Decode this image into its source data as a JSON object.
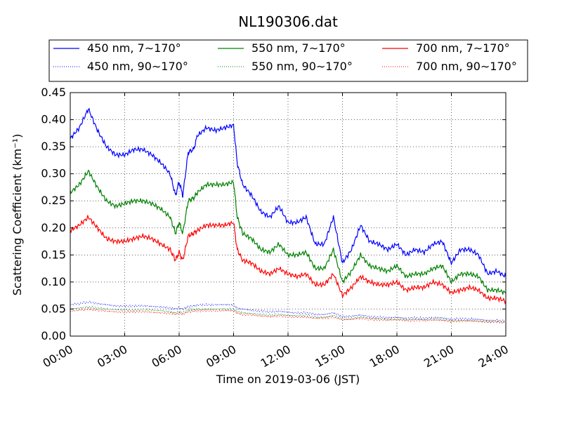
{
  "chart_data": {
    "type": "line",
    "title": "NL190306.dat",
    "xlabel": "Time on 2019-03-06 (JST)",
    "ylabel": "Scattering Coefficient (km⁻¹)",
    "xlim": [
      "00:00",
      "24:00"
    ],
    "ylim": [
      0,
      0.45
    ],
    "x_ticks": [
      "00:00",
      "03:00",
      "06:00",
      "09:00",
      "12:00",
      "15:00",
      "18:00",
      "21:00",
      "24:00"
    ],
    "y_ticks": [
      "0.00",
      "0.05",
      "0.10",
      "0.15",
      "0.20",
      "0.25",
      "0.30",
      "0.35",
      "0.40",
      "0.45"
    ],
    "grid": true,
    "legend_position": "top, above plot",
    "x": [
      0,
      0.5,
      1,
      1.5,
      2,
      2.5,
      3,
      3.5,
      4,
      4.5,
      5,
      5.5,
      5.8,
      6,
      6.2,
      6.5,
      6.8,
      7,
      7.5,
      8,
      8.5,
      9,
      9.2,
      9.5,
      10,
      10.5,
      11,
      11.5,
      12,
      12.5,
      13,
      13.5,
      14,
      14.5,
      15,
      15.5,
      16,
      16.5,
      17,
      17.5,
      18,
      18.5,
      19,
      19.5,
      20,
      20.5,
      21,
      21.5,
      22,
      22.5,
      23,
      23.5,
      24
    ],
    "series": [
      {
        "name": "450 nm, 7∼170°",
        "color": "#0000ff",
        "style": "solid",
        "values": [
          0.365,
          0.385,
          0.42,
          0.38,
          0.35,
          0.335,
          0.335,
          0.345,
          0.345,
          0.335,
          0.32,
          0.3,
          0.26,
          0.285,
          0.26,
          0.34,
          0.345,
          0.37,
          0.385,
          0.38,
          0.385,
          0.39,
          0.32,
          0.28,
          0.26,
          0.23,
          0.22,
          0.24,
          0.21,
          0.21,
          0.22,
          0.17,
          0.17,
          0.22,
          0.135,
          0.16,
          0.205,
          0.175,
          0.17,
          0.16,
          0.17,
          0.15,
          0.16,
          0.155,
          0.17,
          0.175,
          0.135,
          0.16,
          0.16,
          0.15,
          0.115,
          0.12,
          0.11
        ]
      },
      {
        "name": "550 nm, 7∼170°",
        "color": "#008000",
        "style": "solid",
        "values": [
          0.265,
          0.28,
          0.305,
          0.275,
          0.25,
          0.24,
          0.245,
          0.25,
          0.25,
          0.245,
          0.235,
          0.22,
          0.19,
          0.21,
          0.19,
          0.25,
          0.255,
          0.265,
          0.28,
          0.28,
          0.28,
          0.285,
          0.22,
          0.19,
          0.18,
          0.16,
          0.155,
          0.17,
          0.15,
          0.15,
          0.155,
          0.125,
          0.125,
          0.16,
          0.1,
          0.12,
          0.15,
          0.13,
          0.125,
          0.12,
          0.13,
          0.11,
          0.115,
          0.115,
          0.125,
          0.13,
          0.1,
          0.115,
          0.115,
          0.11,
          0.085,
          0.085,
          0.08
        ]
      },
      {
        "name": "700 nm, 7∼170°",
        "color": "#ff0000",
        "style": "solid",
        "values": [
          0.195,
          0.205,
          0.22,
          0.2,
          0.18,
          0.175,
          0.175,
          0.18,
          0.185,
          0.18,
          0.17,
          0.16,
          0.14,
          0.155,
          0.14,
          0.185,
          0.19,
          0.195,
          0.205,
          0.205,
          0.205,
          0.21,
          0.16,
          0.14,
          0.135,
          0.12,
          0.115,
          0.125,
          0.115,
          0.11,
          0.115,
          0.095,
          0.095,
          0.115,
          0.075,
          0.09,
          0.11,
          0.1,
          0.095,
          0.095,
          0.1,
          0.085,
          0.09,
          0.09,
          0.1,
          0.095,
          0.08,
          0.085,
          0.09,
          0.085,
          0.07,
          0.07,
          0.065
        ]
      },
      {
        "name": "450 nm, 90∼170°",
        "color": "#0000ff",
        "style": "dotted",
        "values": [
          0.058,
          0.06,
          0.063,
          0.06,
          0.058,
          0.056,
          0.055,
          0.056,
          0.056,
          0.055,
          0.054,
          0.052,
          0.05,
          0.052,
          0.05,
          0.055,
          0.056,
          0.057,
          0.058,
          0.058,
          0.058,
          0.058,
          0.052,
          0.05,
          0.048,
          0.046,
          0.045,
          0.046,
          0.044,
          0.043,
          0.043,
          0.04,
          0.04,
          0.043,
          0.036,
          0.037,
          0.039,
          0.036,
          0.035,
          0.034,
          0.035,
          0.033,
          0.034,
          0.033,
          0.034,
          0.034,
          0.031,
          0.032,
          0.032,
          0.031,
          0.029,
          0.029,
          0.028
        ]
      },
      {
        "name": "550 nm, 90∼170°",
        "color": "#008000",
        "style": "dotted",
        "values": [
          0.05,
          0.052,
          0.054,
          0.052,
          0.05,
          0.049,
          0.048,
          0.048,
          0.049,
          0.048,
          0.047,
          0.045,
          0.043,
          0.045,
          0.043,
          0.048,
          0.049,
          0.049,
          0.05,
          0.05,
          0.05,
          0.05,
          0.045,
          0.043,
          0.042,
          0.04,
          0.039,
          0.04,
          0.038,
          0.038,
          0.038,
          0.035,
          0.035,
          0.038,
          0.032,
          0.033,
          0.035,
          0.033,
          0.032,
          0.031,
          0.032,
          0.03,
          0.031,
          0.03,
          0.031,
          0.031,
          0.028,
          0.029,
          0.029,
          0.028,
          0.027,
          0.027,
          0.026
        ]
      },
      {
        "name": "700 nm, 90∼170°",
        "color": "#ff0000",
        "style": "dotted",
        "values": [
          0.046,
          0.048,
          0.05,
          0.048,
          0.046,
          0.045,
          0.044,
          0.045,
          0.045,
          0.044,
          0.043,
          0.042,
          0.04,
          0.042,
          0.04,
          0.045,
          0.046,
          0.046,
          0.047,
          0.047,
          0.047,
          0.047,
          0.042,
          0.04,
          0.039,
          0.037,
          0.036,
          0.037,
          0.036,
          0.035,
          0.035,
          0.033,
          0.033,
          0.035,
          0.03,
          0.031,
          0.033,
          0.031,
          0.03,
          0.03,
          0.03,
          0.029,
          0.029,
          0.029,
          0.03,
          0.029,
          0.027,
          0.028,
          0.028,
          0.027,
          0.026,
          0.026,
          0.025
        ]
      }
    ]
  }
}
